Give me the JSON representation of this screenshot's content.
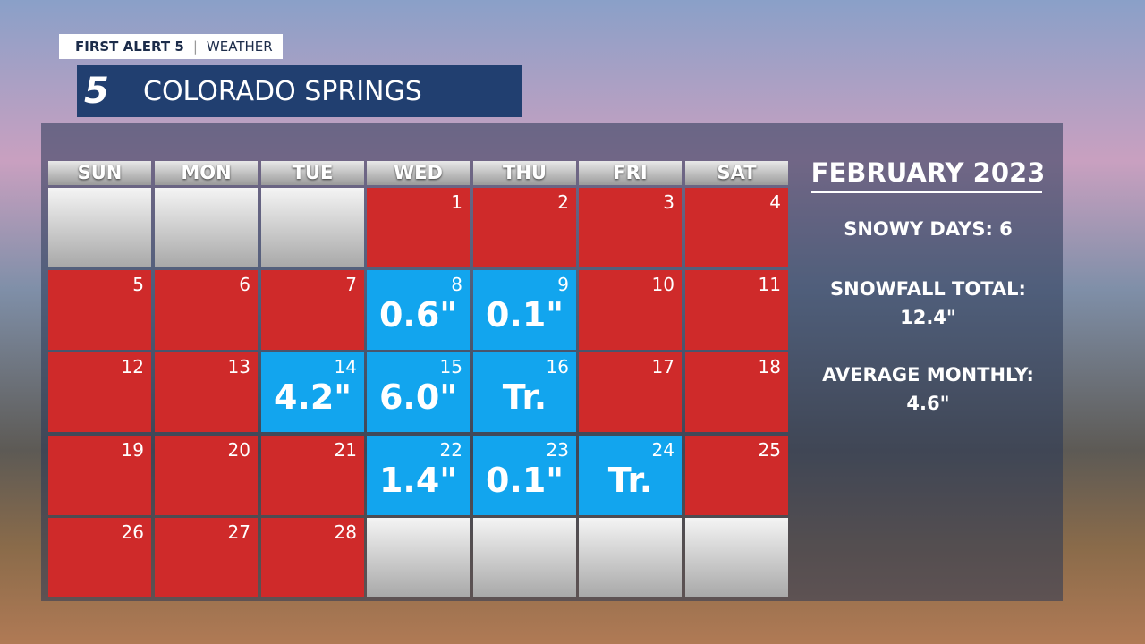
{
  "header": {
    "brand": "FIRST ALERT 5",
    "section": "WEATHER",
    "logo": "5",
    "location": "COLORADO SPRINGS"
  },
  "calendar": {
    "days": [
      "SUN",
      "MON",
      "TUE",
      "WED",
      "THU",
      "FRI",
      "SAT"
    ],
    "weeks": [
      [
        null,
        null,
        null,
        {
          "day": 1
        },
        {
          "day": 2
        },
        {
          "day": 3
        },
        {
          "day": 4
        }
      ],
      [
        {
          "day": 5
        },
        {
          "day": 6
        },
        {
          "day": 7
        },
        {
          "day": 8,
          "snow": "0.6\""
        },
        {
          "day": 9,
          "snow": "0.1\""
        },
        {
          "day": 10
        },
        {
          "day": 11
        }
      ],
      [
        {
          "day": 12
        },
        {
          "day": 13
        },
        {
          "day": 14,
          "snow": "4.2\""
        },
        {
          "day": 15,
          "snow": "6.0\""
        },
        {
          "day": 16,
          "snow": "Tr."
        },
        {
          "day": 17
        },
        {
          "day": 18
        }
      ],
      [
        {
          "day": 19
        },
        {
          "day": 20
        },
        {
          "day": 21
        },
        {
          "day": 22,
          "snow": "1.4\""
        },
        {
          "day": 23,
          "snow": "0.1\""
        },
        {
          "day": 24,
          "snow": "Tr."
        },
        {
          "day": 25
        }
      ],
      [
        {
          "day": 26
        },
        {
          "day": 27
        },
        {
          "day": 28
        },
        null,
        null,
        null,
        null
      ]
    ]
  },
  "summary": {
    "title": "FEBRUARY 2023",
    "stats": [
      {
        "label": "SNOWY DAYS:",
        "value": "6"
      },
      {
        "label": "SNOWFALL TOTAL:",
        "value": "12.4\""
      },
      {
        "label": "AVERAGE MONTHLY:",
        "value": "4.6\""
      }
    ]
  }
}
